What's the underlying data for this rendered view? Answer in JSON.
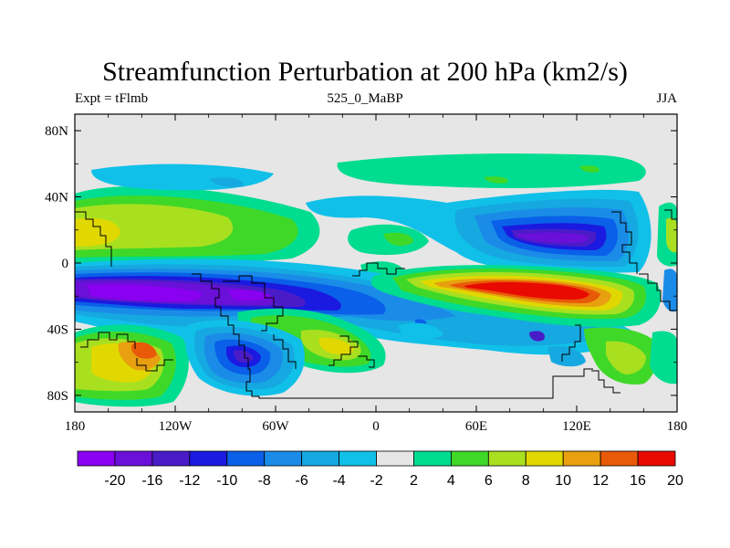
{
  "chart_data": {
    "type": "heatmap",
    "title": "Streamfunction Perturbation at 200 hPa (km2/s)",
    "subtitle_left": "Expt = tFlmb",
    "subtitle_center": "525_0_MaBP",
    "subtitle_right": "JJA",
    "x_axis": {
      "range": [
        -180,
        180
      ],
      "ticks": [
        -180,
        -120,
        -60,
        0,
        60,
        120,
        180
      ],
      "tick_labels": [
        "180",
        "120W",
        "60W",
        "0",
        "60E",
        "120E",
        "180"
      ]
    },
    "y_axis": {
      "range": [
        -90,
        90
      ],
      "ticks": [
        80,
        40,
        0,
        -40,
        -80
      ],
      "tick_labels": [
        "80N",
        "40N",
        "0",
        "40S",
        "80S"
      ]
    },
    "colorbar": {
      "labels": [
        "-20",
        "-16",
        "-12",
        "-10",
        "-8",
        "-6",
        "-4",
        "-2",
        "2",
        "4",
        "6",
        "8",
        "10",
        "12",
        "16",
        "20"
      ],
      "colors": [
        "#8a00f0",
        "#6a10d8",
        "#4a1cc8",
        "#1a1ae0",
        "#0a60e8",
        "#1a8ce8",
        "#16a8e0",
        "#10c0e8",
        "#e6e6e6",
        "#00dc90",
        "#40d828",
        "#a8e020",
        "#e0d800",
        "#e8a010",
        "#e85a08",
        "#e80a00"
      ]
    },
    "background_color": "#e6e6e6",
    "features": [
      {
        "name": "SH subtropical negative band",
        "lon": [
          -170,
          -30
        ],
        "lat": [
          -45,
          -10
        ],
        "peak": -20
      },
      {
        "name": "Western Pacific positive maximum",
        "lon": [
          60,
          150
        ],
        "lat": [
          -40,
          -5
        ],
        "peak": 20
      },
      {
        "name": "Asian negative center",
        "lon": [
          95,
          155
        ],
        "lat": [
          5,
          35
        ],
        "peak": -16
      },
      {
        "name": "South Pacific positive center",
        "lon": [
          -180,
          -130
        ],
        "lat": [
          -75,
          -40
        ],
        "peak": 12
      },
      {
        "name": "South Atlantic positive center",
        "lon": [
          -30,
          0
        ],
        "lat": [
          -65,
          -35
        ],
        "peak": 8
      },
      {
        "name": "North Pacific positive band",
        "lon": [
          -180,
          -90
        ],
        "lat": [
          10,
          40
        ],
        "peak": 8
      },
      {
        "name": "Northern high-latitude positive band",
        "lon": [
          -40,
          150
        ],
        "lat": [
          40,
          60
        ],
        "peak": 4
      }
    ]
  }
}
